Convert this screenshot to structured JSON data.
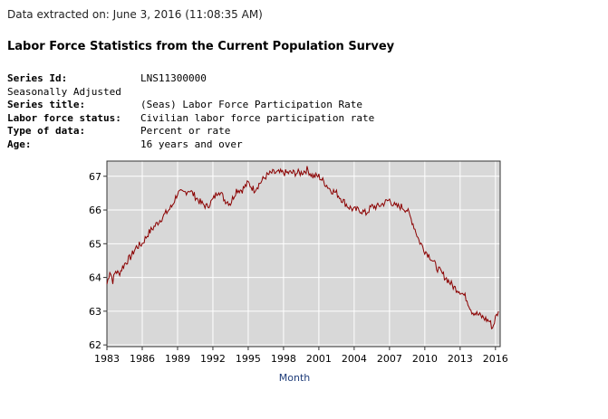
{
  "extracted_line": "Data extracted on: June 3, 2016 (11:08:35 AM)",
  "page_title": "Labor Force Statistics from the Current Population Survey",
  "series_info": {
    "series_id_label": "Series Id:",
    "series_id": "LNS11300000",
    "seasonally_adjusted": "Seasonally Adjusted",
    "series_title_label": "Series title:",
    "series_title": "(Seas) Labor Force Participation Rate",
    "labor_force_status_label": "Labor force status:",
    "labor_force_status": "Civilian labor force participation rate",
    "type_of_data_label": "Type of data:",
    "type_of_data": "Percent or rate",
    "age_label": "Age:",
    "age": "16 years and over"
  },
  "chart_data": {
    "type": "line",
    "title": "",
    "xlabel": "Month",
    "ylabel": "",
    "xlim": [
      1983.0,
      2016.4
    ],
    "ylim": [
      61.95,
      67.45
    ],
    "x_ticks": [
      "1983",
      "1986",
      "1989",
      "1992",
      "1995",
      "1998",
      "2001",
      "2004",
      "2007",
      "2010",
      "2013",
      "2016"
    ],
    "y_ticks": [
      "62",
      "63",
      "64",
      "65",
      "66",
      "67"
    ],
    "grid": true,
    "plot_background": "#d8d8d8",
    "series": [
      {
        "color": "#8b0000",
        "x": [
          1983.0,
          1983.25,
          1983.5,
          1983.75,
          1984.0,
          1984.5,
          1985.0,
          1985.5,
          1986.0,
          1986.5,
          1987.0,
          1987.5,
          1988.0,
          1988.5,
          1989.0,
          1989.5,
          1990.0,
          1990.5,
          1991.0,
          1991.5,
          1992.0,
          1992.5,
          1993.0,
          1993.5,
          1994.0,
          1994.5,
          1995.0,
          1995.5,
          1996.0,
          1996.5,
          1997.0,
          1997.5,
          1998.0,
          1998.5,
          1999.0,
          1999.5,
          2000.0,
          2000.5,
          2001.0,
          2001.5,
          2002.0,
          2002.5,
          2003.0,
          2003.5,
          2004.0,
          2004.5,
          2005.0,
          2005.5,
          2006.0,
          2006.5,
          2007.0,
          2007.5,
          2008.0,
          2008.5,
          2009.0,
          2009.5,
          2010.0,
          2010.5,
          2011.0,
          2011.5,
          2012.0,
          2012.5,
          2013.0,
          2013.5,
          2014.0,
          2014.5,
          2015.0,
          2015.5,
          2015.75,
          2016.0,
          2016.25
        ],
        "y": [
          63.8,
          64.2,
          63.9,
          64.2,
          64.1,
          64.4,
          64.6,
          64.9,
          65.0,
          65.3,
          65.5,
          65.7,
          65.9,
          66.1,
          66.5,
          66.5,
          66.6,
          66.4,
          66.2,
          66.1,
          66.3,
          66.6,
          66.3,
          66.2,
          66.6,
          66.6,
          66.8,
          66.6,
          66.8,
          67.0,
          67.1,
          67.1,
          67.1,
          67.1,
          67.1,
          67.1,
          67.2,
          67.0,
          67.0,
          66.8,
          66.6,
          66.5,
          66.3,
          66.1,
          66.0,
          66.0,
          65.9,
          66.1,
          66.1,
          66.2,
          66.3,
          66.1,
          66.1,
          66.0,
          65.6,
          65.1,
          64.8,
          64.6,
          64.3,
          64.1,
          63.9,
          63.7,
          63.6,
          63.4,
          63.0,
          62.9,
          62.8,
          62.7,
          62.5,
          62.8,
          63.0
        ]
      }
    ]
  }
}
